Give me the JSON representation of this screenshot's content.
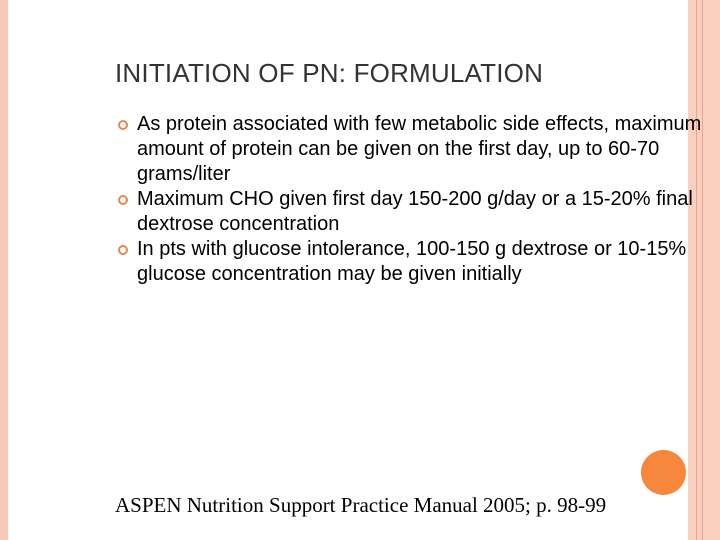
{
  "slide": {
    "title": "INITIATION OF PN: FORMULATION",
    "bullets": [
      {
        "icon": "circle-bullet-icon",
        "text": "As protein associated with few metabolic side effects, maximum amount of protein can be given on the first day, up to 60-70 grams/liter"
      },
      {
        "icon": "circle-bullet-icon",
        "text": "Maximum CHO given first day 150-200 g/day or a 15-20% final dextrose concentration"
      },
      {
        "icon": "circle-bullet-icon",
        "text": "In pts with glucose intolerance, 100-150 g dextrose or 10-15% glucose concentration may be given initially"
      }
    ],
    "citation": "ASPEN Nutrition Support Practice Manual 2005; p. 98-99"
  },
  "colors": {
    "accent": "#f6873d",
    "border": "#fbd0c0",
    "bullet": "#e88a4a"
  }
}
